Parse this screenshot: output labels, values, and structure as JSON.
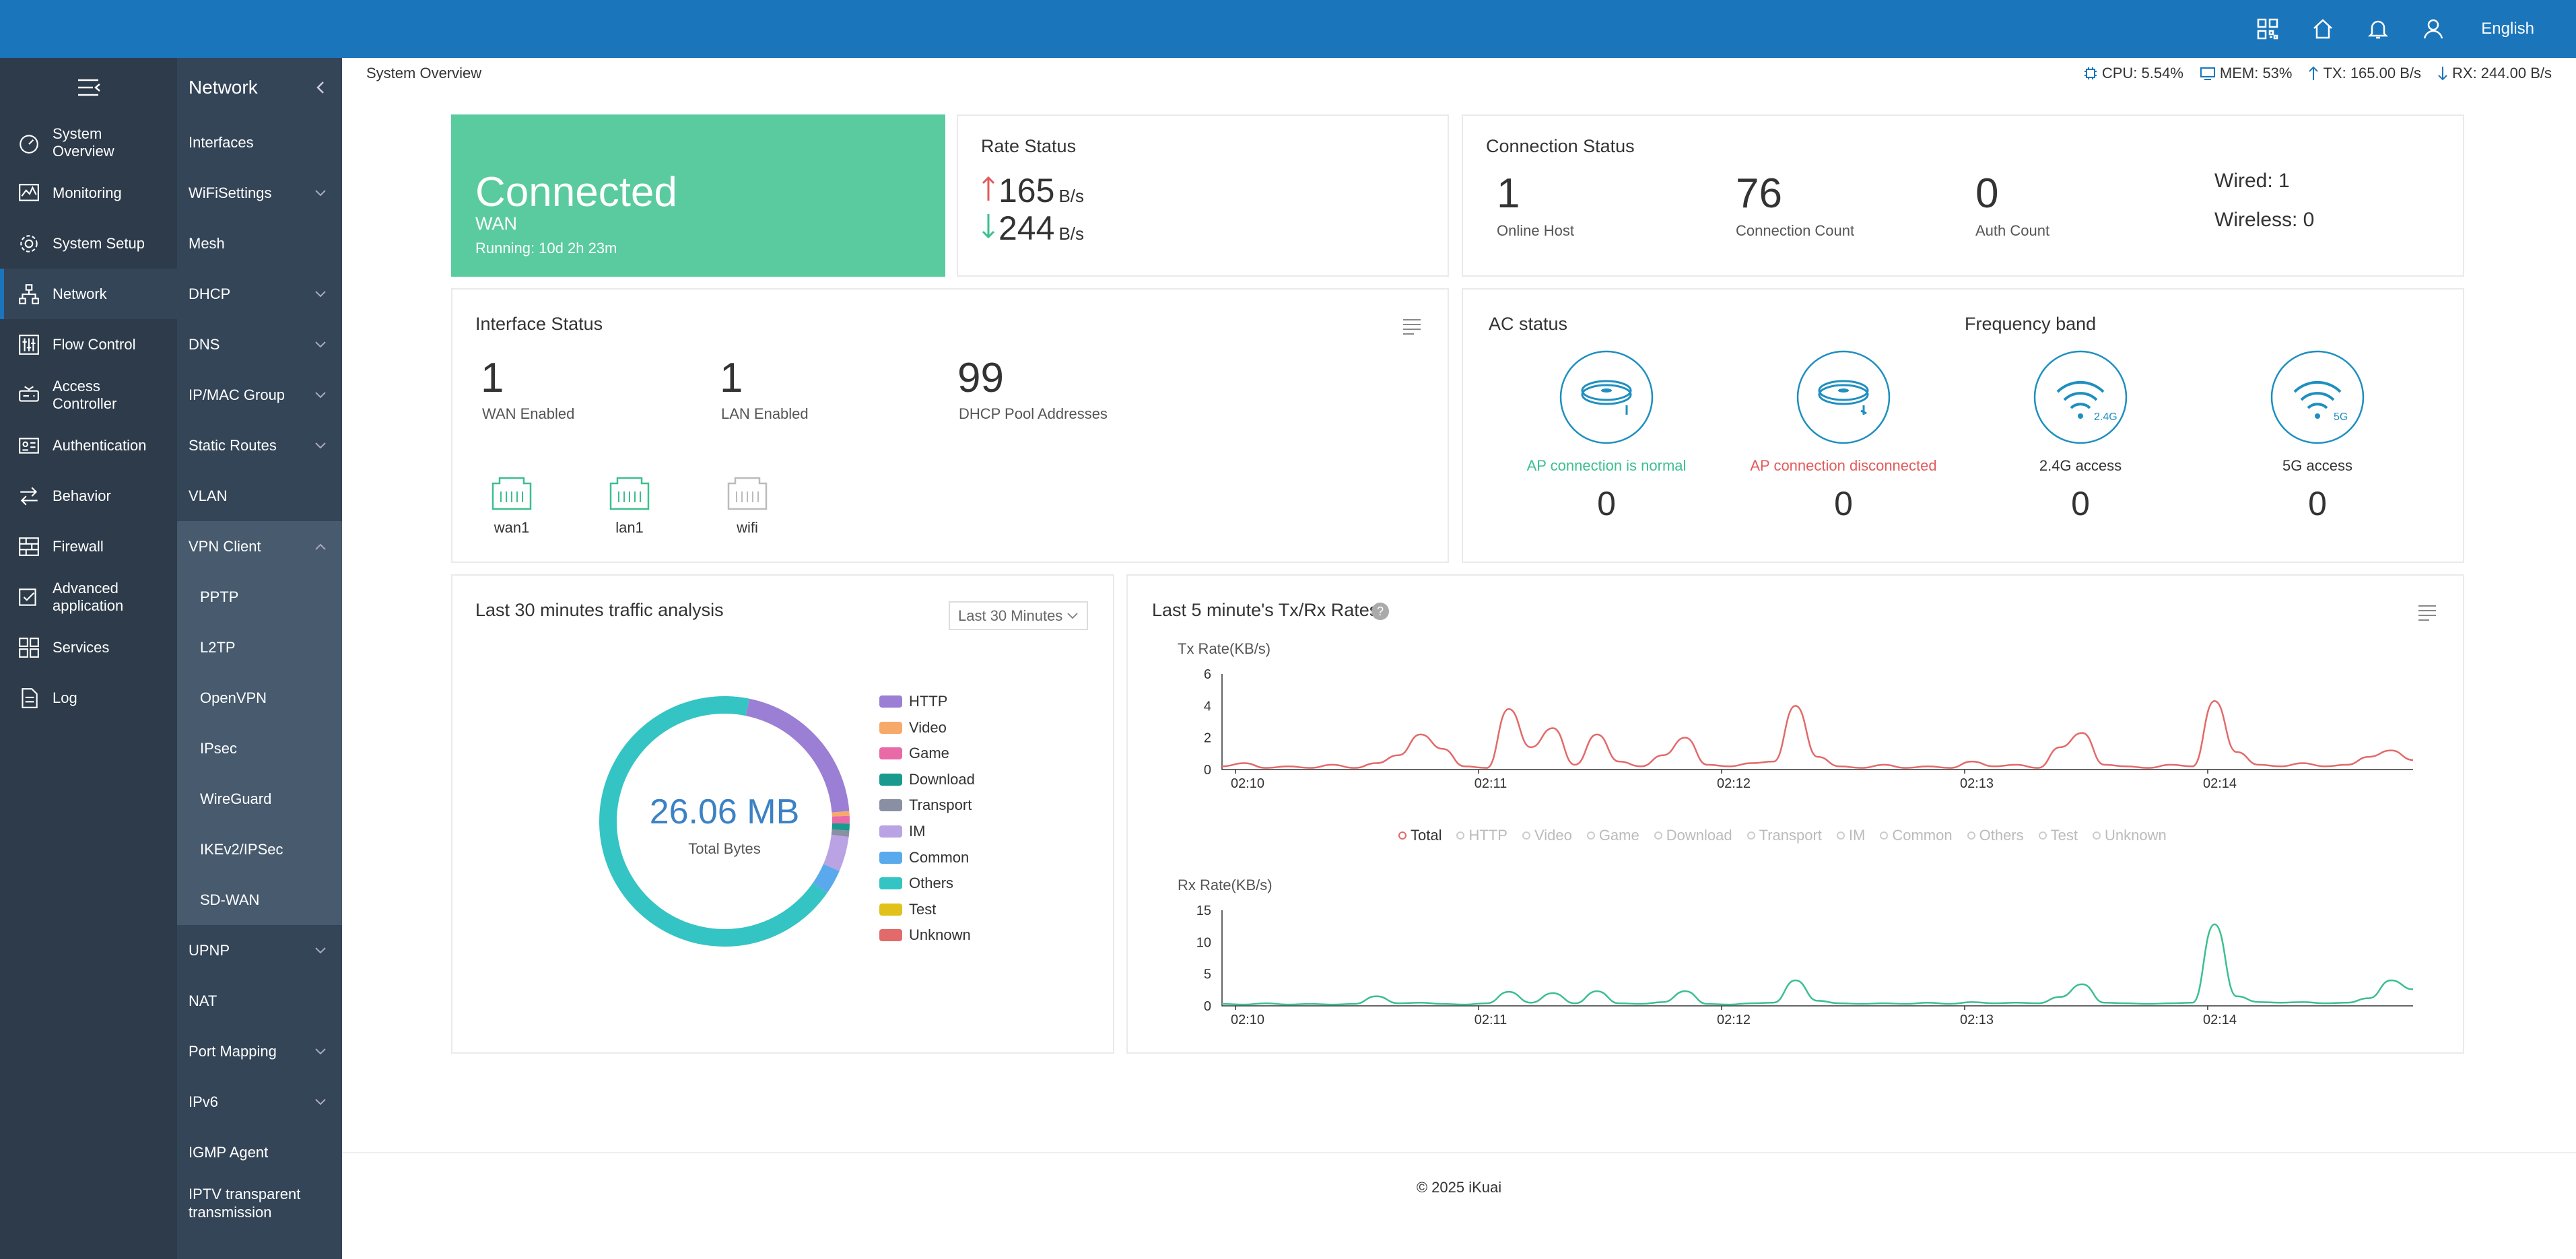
{
  "topbar": {
    "language": "English",
    "icons": [
      "qrcode-icon",
      "home-icon",
      "bell-icon",
      "user-icon"
    ]
  },
  "nav_primary": {
    "items": [
      {
        "name": "System Overview",
        "icon": "dashboard-icon"
      },
      {
        "name": "Monitoring",
        "icon": "monitor-icon"
      },
      {
        "name": "System Setup",
        "icon": "gear-icon"
      },
      {
        "name": "Network",
        "icon": "network-icon",
        "active": true
      },
      {
        "name": "Flow Control",
        "icon": "sliders-icon"
      },
      {
        "name": "Access Controller",
        "icon": "router-icon"
      },
      {
        "name": "Authentication",
        "icon": "id-card-icon"
      },
      {
        "name": "Behavior",
        "icon": "arrows-icon"
      },
      {
        "name": "Firewall",
        "icon": "firewall-icon"
      },
      {
        "name": "Advanced application",
        "icon": "app-icon"
      },
      {
        "name": "Services",
        "icon": "services-icon"
      },
      {
        "name": "Log",
        "icon": "log-icon"
      }
    ]
  },
  "nav_secondary": {
    "title": "Network",
    "items": [
      {
        "label": "Interfaces",
        "chev": false
      },
      {
        "label": "WiFiSettings",
        "chev": true
      },
      {
        "label": "Mesh",
        "chev": false
      },
      {
        "label": "DHCP",
        "chev": true
      },
      {
        "label": "DNS",
        "chev": true
      },
      {
        "label": "IP/MAC Group",
        "chev": true
      },
      {
        "label": "Static Routes",
        "chev": true
      },
      {
        "label": "VLAN",
        "chev": false
      },
      {
        "label": "VPN Client",
        "chev": true,
        "open": true
      }
    ],
    "sub_items": [
      "PPTP",
      "L2TP",
      "OpenVPN",
      "IPsec",
      "WireGuard",
      "IKEv2/IPSec",
      "SD-WAN"
    ],
    "items_after": [
      {
        "label": "UPNP",
        "chev": true
      },
      {
        "label": "NAT",
        "chev": false
      },
      {
        "label": "Port Mapping",
        "chev": true
      },
      {
        "label": "IPv6",
        "chev": true
      },
      {
        "label": "IGMP Agent",
        "chev": false
      },
      {
        "label": "IPTV transparent transmission",
        "chev": false
      }
    ]
  },
  "breadcrumb": "System Overview",
  "header_stats": {
    "cpu": "CPU: 5.54%",
    "mem": "MEM: 53%",
    "tx": "TX: 165.00 B/s",
    "rx": "RX: 244.00 B/s"
  },
  "connection": {
    "state": "Connected",
    "type": "WAN",
    "running": "Running: 10d 2h 23m"
  },
  "rate_status": {
    "title": "Rate Status",
    "up": "165",
    "down": "244",
    "unit": "B/s",
    "up_color": "#e25a5a",
    "down_color": "#3cbf8f"
  },
  "connection_status": {
    "title": "Connection Status",
    "online_host": "1",
    "online_host_label": "Online Host",
    "connection_count": "76",
    "connection_count_label": "Connection Count",
    "auth_count": "0",
    "auth_count_label": "Auth Count",
    "wired": "Wired: 1",
    "wireless": "Wireless: 0"
  },
  "interface_status": {
    "title": "Interface Status",
    "wan_enabled": "1",
    "wan_enabled_label": "WAN Enabled",
    "lan_enabled": "1",
    "lan_enabled_label": "LAN Enabled",
    "dhcp_pool": "99",
    "dhcp_pool_label": "DHCP Pool Addresses",
    "ports": [
      "wan1",
      "lan1",
      "wifi"
    ]
  },
  "ac_status": {
    "title": "AC status",
    "freq_title": "Frequency band",
    "items": [
      {
        "label": "AP connection is normal",
        "value": "0",
        "color": "#3cbf8f"
      },
      {
        "label": "AP connection disconnected",
        "value": "0",
        "color": "#e25a5a"
      },
      {
        "label": "2.4G access",
        "value": "0",
        "color": "#333",
        "badge": "2.4G"
      },
      {
        "label": "5G access",
        "value": "0",
        "color": "#333",
        "badge": "5G"
      }
    ]
  },
  "traffic": {
    "title": "Last 30 minutes traffic analysis",
    "select": "Last 30 Minutes",
    "total": "26.06 MB",
    "total_label": "Total Bytes"
  },
  "rates": {
    "title": "Last 5 minute's Tx/Rx Rates",
    "tx_label": "Tx Rate(KB/s)",
    "rx_label": "Rx Rate(KB/s)"
  },
  "footer": "© 2025 iKuai",
  "chart_data": [
    {
      "type": "pie",
      "title": "",
      "categories": [
        "HTTP",
        "Video",
        "Game",
        "Download",
        "Transport",
        "IM",
        "Common",
        "Others",
        "Test",
        "Unknown"
      ],
      "values": [
        20.5,
        0.6,
        1.0,
        0.9,
        0.8,
        4.5,
        3.2,
        68.5,
        0,
        0
      ],
      "colors": [
        "#9b7fd4",
        "#f7a96a",
        "#e86ba8",
        "#1a9a8e",
        "#8a8fa3",
        "#b9a3e3",
        "#59a9ec",
        "#35c4c4",
        "#e0c21a",
        "#e26a6a"
      ],
      "unit": "%"
    },
    {
      "type": "line",
      "title": "",
      "ylabel": "Tx Rate(KB/s)",
      "ylim": [
        0,
        6
      ],
      "yticks": [
        0,
        2,
        4,
        6
      ],
      "xticks": [
        "02:10",
        "02:11",
        "02:12",
        "02:13",
        "02:14"
      ],
      "series": [
        {
          "name": "Total",
          "color": "#e26a6a",
          "values": [
            0.2,
            0.4,
            0.1,
            0.2,
            0.1,
            0.3,
            0.1,
            0.4,
            0.9,
            2.2,
            1.3,
            0.2,
            0.1,
            3.8,
            1.4,
            2.6,
            0.3,
            2.2,
            0.5,
            0.2,
            0.9,
            2.0,
            0.3,
            0.2,
            0.4,
            0.5,
            4.0,
            0.8,
            0.2,
            0.1,
            0.3,
            0.1,
            0.2,
            0.1,
            0.5,
            0.2,
            0.3,
            0.1,
            1.4,
            2.3,
            0.3,
            0.2,
            0.1,
            0.3,
            0.2,
            4.3,
            1.1,
            0.3,
            0.2,
            0.4,
            0.2,
            0.3,
            0.8,
            1.2,
            0.6
          ]
        }
      ],
      "legend": [
        "Total",
        "HTTP",
        "Video",
        "Game",
        "Download",
        "Transport",
        "IM",
        "Common",
        "Others",
        "Test",
        "Unknown"
      ]
    },
    {
      "type": "line",
      "title": "",
      "ylabel": "Rx Rate(KB/s)",
      "ylim": [
        0,
        15
      ],
      "yticks": [
        0,
        5,
        10,
        15
      ],
      "xticks": [
        "02:10",
        "02:11",
        "02:12",
        "02:13",
        "02:14"
      ],
      "series": [
        {
          "name": "Total",
          "color": "#3cbf8f",
          "values": [
            0.3,
            0.2,
            0.4,
            0.2,
            0.3,
            0.2,
            0.3,
            1.5,
            0.4,
            0.5,
            0.3,
            0.2,
            0.4,
            2.2,
            0.5,
            2.0,
            0.4,
            2.3,
            0.4,
            0.3,
            0.6,
            2.3,
            0.3,
            0.2,
            0.4,
            0.5,
            4.0,
            0.8,
            0.4,
            0.3,
            0.4,
            0.3,
            0.5,
            0.3,
            0.6,
            0.4,
            0.5,
            0.4,
            1.4,
            3.4,
            0.5,
            0.4,
            0.3,
            0.4,
            0.5,
            12.8,
            1.5,
            0.6,
            0.5,
            0.6,
            0.4,
            0.5,
            1.2,
            4.0,
            2.6
          ]
        }
      ]
    }
  ]
}
